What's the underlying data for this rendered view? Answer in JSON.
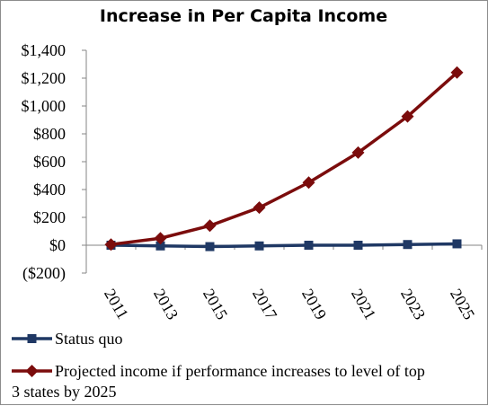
{
  "chart_data": {
    "type": "line",
    "title": "Increase in Per Capita Income",
    "x": [
      "2011",
      "2013",
      "2015",
      "2017",
      "2019",
      "2021",
      "2023",
      "2025"
    ],
    "ylim": [
      -200,
      1400
    ],
    "yticks": [
      -200,
      0,
      200,
      400,
      600,
      800,
      1000,
      1200,
      1400
    ],
    "ytick_labels": [
      "($200)",
      "$0",
      "$200",
      "$400",
      "$600",
      "$800",
      "$1,000",
      "$1,200",
      "$1,400"
    ],
    "grid": false,
    "legend_position": "bottom",
    "series": [
      {
        "name": "Status quo",
        "color": "#1f3864",
        "marker": "square",
        "values": [
          0,
          -5,
          -10,
          -5,
          0,
          0,
          5,
          10
        ]
      },
      {
        "name": "Projected income if performance increases to level of top 3 states by 2025",
        "color": "#7b0c0c",
        "marker": "diamond",
        "values": [
          5,
          50,
          140,
          270,
          450,
          665,
          925,
          1240
        ]
      }
    ]
  }
}
